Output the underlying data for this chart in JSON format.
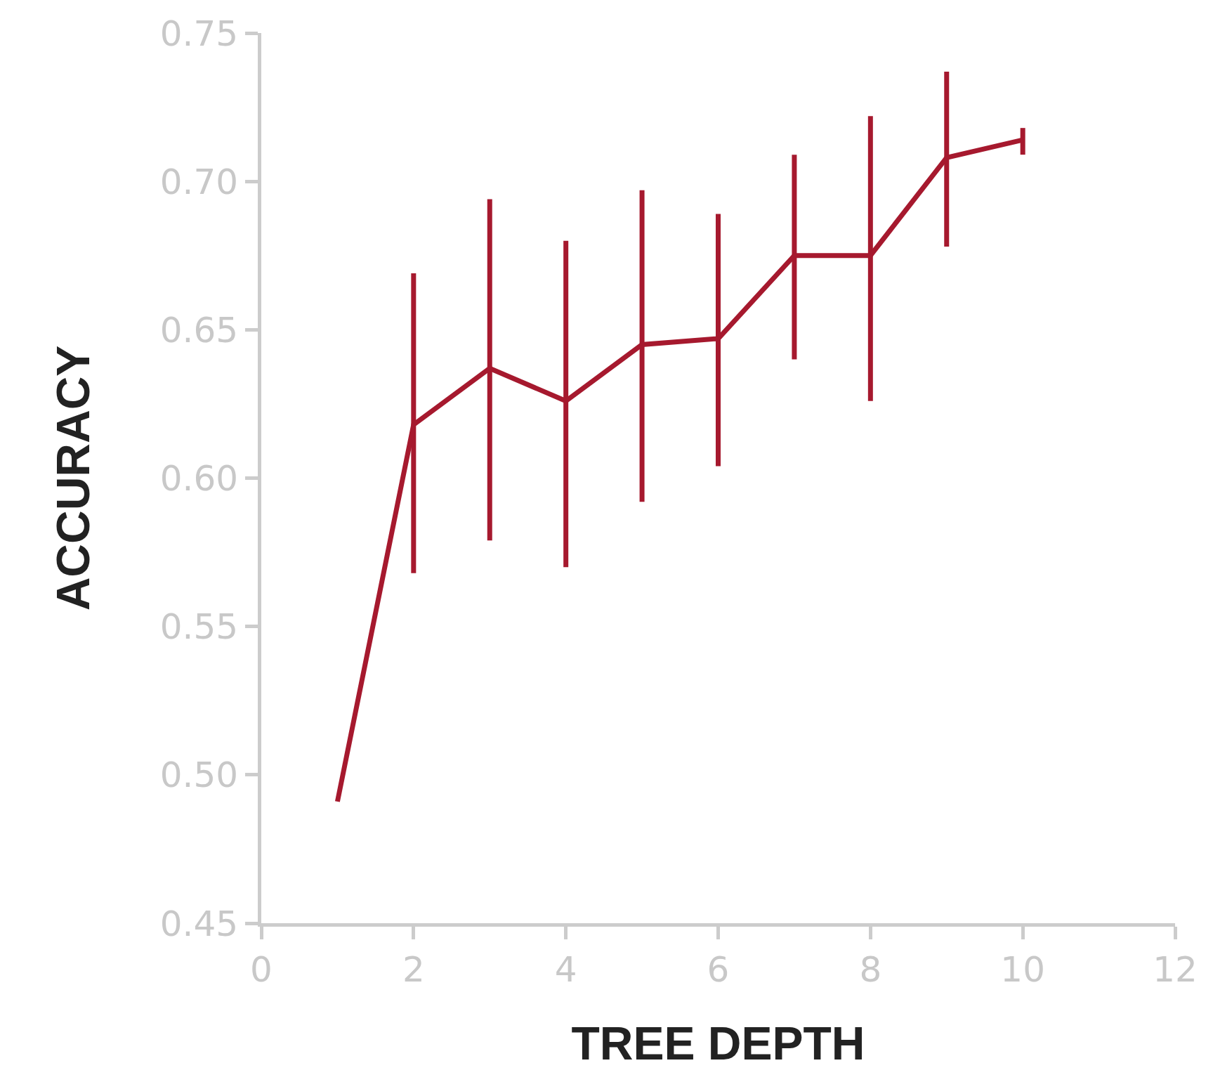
{
  "chart_data": {
    "type": "line",
    "xlabel": "TREE DEPTH",
    "ylabel": "ACCURACY",
    "x": [
      1,
      2,
      3,
      4,
      5,
      6,
      7,
      8,
      9,
      10
    ],
    "series": [
      {
        "color": "#a6192e",
        "values": [
          0.491,
          0.618,
          0.637,
          0.626,
          0.645,
          0.647,
          0.675,
          0.675,
          0.708,
          0.714
        ],
        "errors": [
          null,
          [
            0.568,
            0.669
          ],
          [
            0.579,
            0.694
          ],
          [
            0.57,
            0.68
          ],
          [
            0.592,
            0.697
          ],
          [
            0.604,
            0.689
          ],
          [
            0.64,
            0.709
          ],
          [
            0.626,
            0.722
          ],
          [
            0.678,
            0.737
          ],
          [
            0.709,
            0.718
          ]
        ]
      }
    ],
    "xlim": [
      0,
      12
    ],
    "xticks": [
      0,
      2,
      4,
      6,
      8,
      10,
      12
    ],
    "ylim": [
      0.45,
      0.75
    ],
    "yticks": [
      {
        "value": 0.45,
        "label": "0.45"
      },
      {
        "value": 0.5,
        "label": "0.50"
      },
      {
        "value": 0.55,
        "label": "0.55"
      },
      {
        "value": 0.6,
        "label": "0.60"
      },
      {
        "value": 0.65,
        "label": "0.65"
      },
      {
        "value": 0.7,
        "label": "0.70"
      },
      {
        "value": 0.75,
        "label": "0.75"
      }
    ],
    "grid": false,
    "marker": "none",
    "line_style": "solid"
  }
}
